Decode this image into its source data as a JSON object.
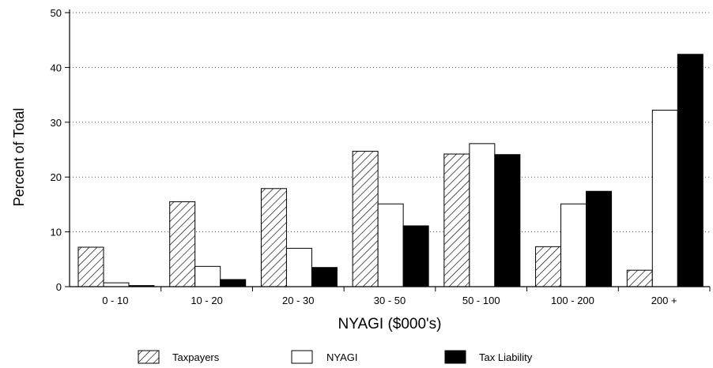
{
  "chart_data": {
    "type": "bar",
    "title": "",
    "xlabel": "NYAGI ($000's)",
    "ylabel": "Percent of Total",
    "ylim": [
      0,
      50
    ],
    "yticks": [
      0,
      10,
      20,
      30,
      40,
      50
    ],
    "grid": "horizontal dotted",
    "legend_position": "bottom",
    "categories": [
      "0 - 10",
      "10 - 20",
      "20 - 30",
      "30 - 50",
      "50 - 100",
      "100 - 200",
      "200 +"
    ],
    "series": [
      {
        "name": "Taxpayers",
        "fill": "hatched",
        "values": [
          7.2,
          15.5,
          17.9,
          24.7,
          24.2,
          7.3,
          3.0
        ]
      },
      {
        "name": "NYAGI",
        "fill": "white",
        "values": [
          0.7,
          3.7,
          7.0,
          15.1,
          26.1,
          15.1,
          32.2
        ]
      },
      {
        "name": "Tax Liability",
        "fill": "black",
        "values": [
          0.2,
          1.3,
          3.5,
          11.1,
          24.1,
          17.4,
          42.4
        ]
      }
    ]
  }
}
